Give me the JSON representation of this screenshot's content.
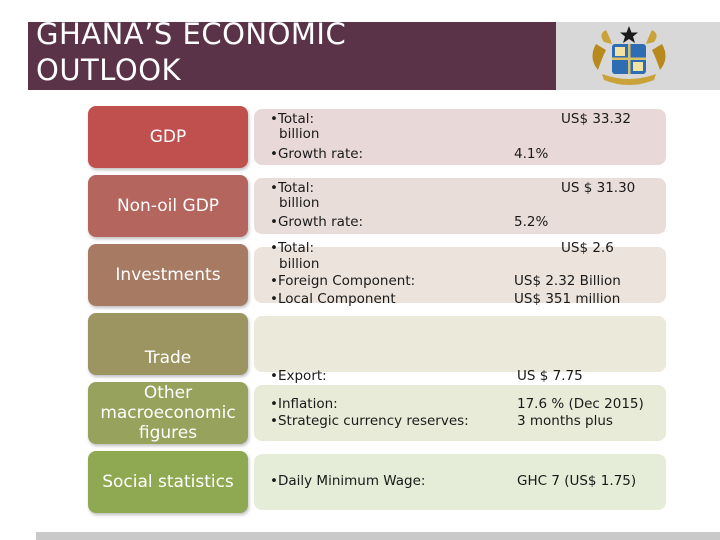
{
  "title_line1": "GHANA’S ECONOMIC",
  "title_line2": "OUTLOOK",
  "rows": {
    "gdp": {
      "label": "GDP",
      "total_label": "Total:",
      "total_value": "US$ 33.32",
      "total_unit": "billion",
      "growth_label": "Growth rate:",
      "growth_value": "4.1%"
    },
    "nonoil": {
      "label": "Non-oil GDP",
      "total_label": "Total:",
      "total_value": "US $ 31.30",
      "total_unit": "billion",
      "growth_label": "Growth rate:",
      "growth_value": "5.2%"
    },
    "investments": {
      "label": "Investments",
      "total_label": "Total:",
      "total_value": "US$ 2.6",
      "total_unit": "billion",
      "foreign_label": "Foreign Component:",
      "foreign_value": "US$ 2.32 Billion",
      "local_label": "Local Component",
      "local_value": "US$ 351 million"
    },
    "trade": {
      "label": "Trade",
      "export_label": "Export:",
      "export_value": "US $ 7.75"
    },
    "other": {
      "label": "Other macroeconomic figures",
      "inflation_label": "Inflation:",
      "inflation_value": "17.6 % (Dec 2015)",
      "reserves_label": "Strategic currency reserves:",
      "reserves_value": "3 months plus"
    },
    "social": {
      "label": "Social statistics",
      "wage_label": "Daily Minimum Wage:",
      "wage_value": "GHC 7 (US$ 1.75)"
    }
  },
  "colors": {
    "header": "#5b3349",
    "gdp": "#c0504d",
    "nonoil": "#b4655e",
    "investments": "#a77b63",
    "trade": "#9d9561",
    "other": "#97a25c",
    "social": "#8fa852"
  }
}
